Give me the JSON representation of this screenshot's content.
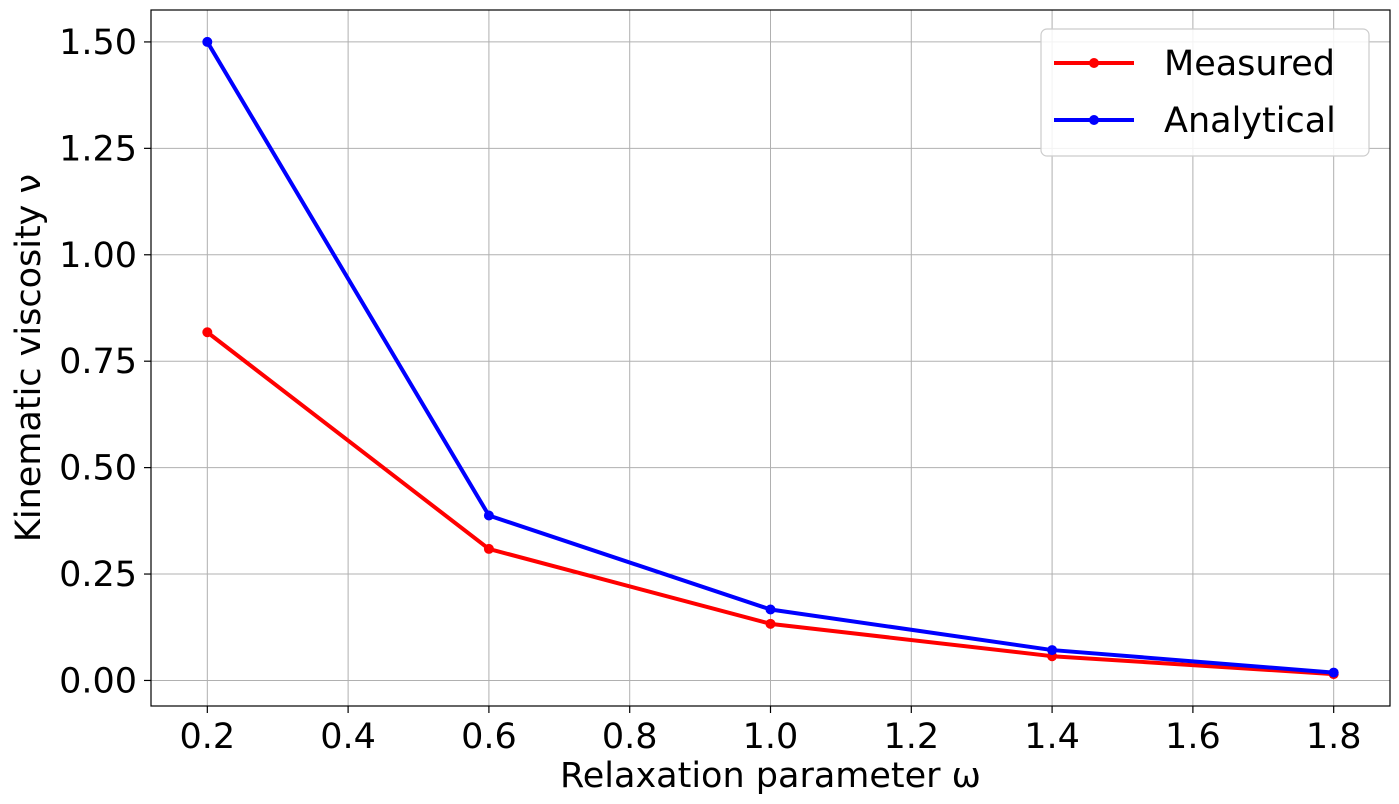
{
  "chart_data": {
    "type": "line",
    "title": "",
    "xlabel": "Relaxation parameter ω",
    "ylabel": "Kinematic viscosity ν",
    "x": [
      0.2,
      0.6,
      1.0,
      1.4,
      1.8
    ],
    "series": [
      {
        "name": "Measured",
        "color": "#ff0000",
        "values": [
          0.818,
          0.309,
          0.133,
          0.057,
          0.015
        ]
      },
      {
        "name": "Analytical",
        "color": "#0000ff",
        "values": [
          1.5,
          0.3875,
          0.1667,
          0.0714,
          0.0185
        ]
      }
    ],
    "xlim": [
      0.12,
      1.88
    ],
    "ylim": [
      -0.06,
      1.575
    ],
    "xticks": [
      "0.2",
      "0.4",
      "0.6",
      "0.8",
      "1.0",
      "1.2",
      "1.4",
      "1.6",
      "1.8"
    ],
    "yticks": [
      "0.00",
      "0.25",
      "0.50",
      "0.75",
      "1.00",
      "1.25",
      "1.50"
    ],
    "grid": true,
    "legend_position": "top-right",
    "marker": "circle"
  }
}
